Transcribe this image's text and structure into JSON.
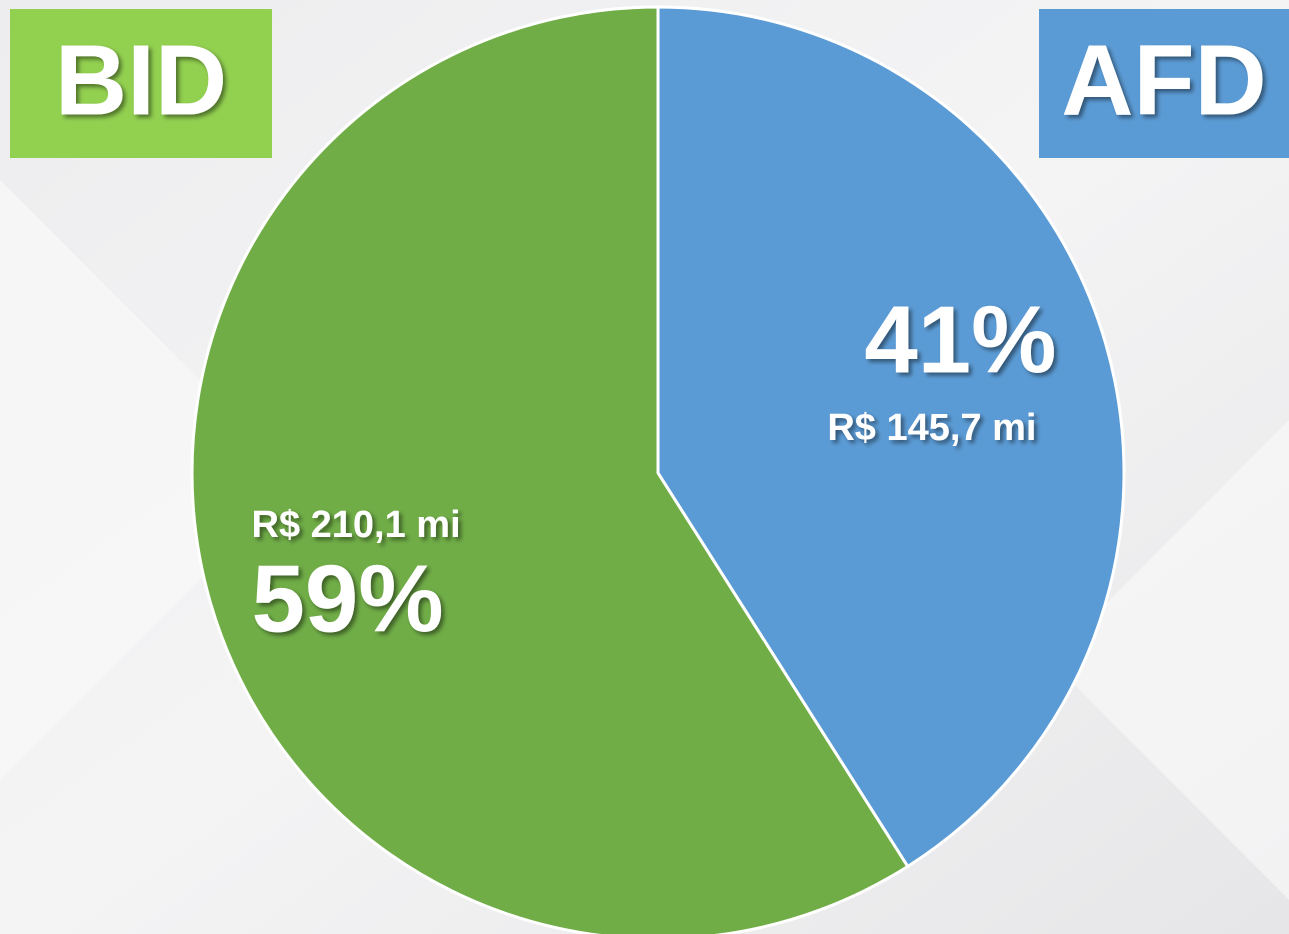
{
  "chart_data": {
    "type": "pie",
    "categories": [
      "AFD",
      "BID"
    ],
    "values": [
      41,
      59
    ],
    "value_labels": [
      "41%",
      "59%"
    ],
    "amount_labels": [
      "R$ 145,7 mi",
      "R$ 210,1 mi"
    ],
    "colors": [
      "#5b9bd5",
      "#70ad47"
    ],
    "legend_colors": [
      "#5b9bd5",
      "#92d050"
    ],
    "start_angle": 0,
    "direction": "clockwise"
  }
}
